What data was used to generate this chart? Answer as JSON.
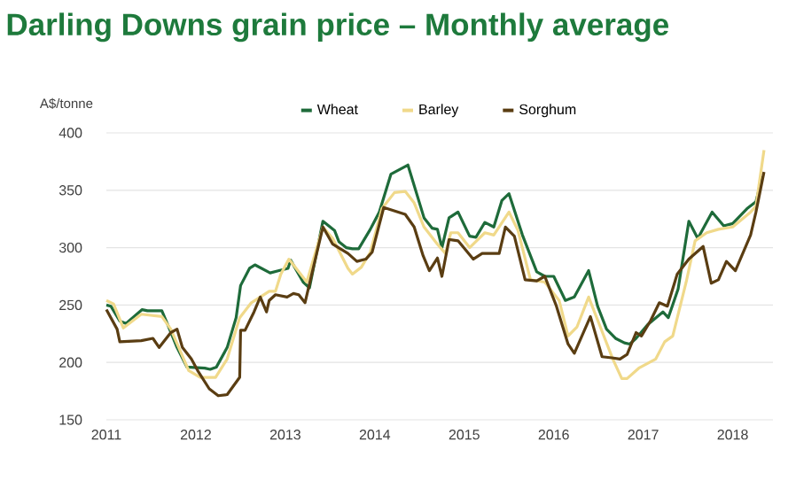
{
  "chart_data": {
    "type": "line",
    "title": "Darling Downs grain price – Monthly average",
    "ylabel": "A$/tonne",
    "xlim": [
      2011,
      2018.45
    ],
    "xticks": [
      2011,
      2012,
      2013,
      2014,
      2015,
      2016,
      2017,
      2018
    ],
    "ylim": [
      150,
      400
    ],
    "yticks": [
      150,
      200,
      250,
      300,
      350,
      400
    ],
    "grid": "y",
    "legend": "top",
    "marker": "none",
    "line_style": "solid",
    "series": [
      {
        "name": "Wheat",
        "color": "#1e6b3a",
        "x": [
          2011.0,
          2011.05,
          2011.15,
          2011.22,
          2011.4,
          2011.46,
          2011.62,
          2011.69,
          2011.79,
          2011.9,
          2012.1,
          2012.16,
          2012.23,
          2012.35,
          2012.45,
          2012.5,
          2012.6,
          2012.66,
          2012.83,
          2012.93,
          2013.03,
          2013.06,
          2013.2,
          2013.27,
          2013.42,
          2013.55,
          2013.6,
          2013.68,
          2013.75,
          2013.82,
          2013.95,
          2014.05,
          2014.18,
          2014.37,
          2014.55,
          2014.64,
          2014.7,
          2014.75,
          2014.83,
          2014.93,
          2015.06,
          2015.13,
          2015.23,
          2015.33,
          2015.42,
          2015.5,
          2015.65,
          2015.81,
          2015.9,
          2016.0,
          2016.13,
          2016.23,
          2016.39,
          2016.49,
          2016.59,
          2016.69,
          2016.79,
          2016.85,
          2016.92,
          2017.05,
          2017.22,
          2017.28,
          2017.39,
          2017.51,
          2017.61,
          2017.77,
          2017.9,
          2018.0,
          2018.16,
          2018.26,
          2018.33
        ],
        "values": [
          250,
          249,
          236,
          234,
          246,
          245,
          245,
          232,
          213,
          196,
          195,
          194,
          196,
          213,
          239,
          267,
          282,
          285,
          278,
          280,
          282,
          289,
          270,
          265,
          323,
          315,
          305,
          300,
          299,
          299,
          316,
          331,
          364,
          372,
          326,
          317,
          316,
          300,
          326,
          331,
          310,
          309,
          322,
          318,
          341,
          347,
          311,
          279,
          275,
          275,
          254,
          257,
          280,
          249,
          229,
          221,
          217,
          216,
          221,
          233,
          244,
          239,
          264,
          323,
          308,
          331,
          319,
          321,
          334,
          340,
          362
        ]
      },
      {
        "name": "Barley",
        "color": "#f0d98a",
        "x": [
          2011.0,
          2011.08,
          2011.19,
          2011.39,
          2011.62,
          2011.72,
          2011.82,
          2011.92,
          2012.05,
          2012.22,
          2012.35,
          2012.49,
          2012.62,
          2012.82,
          2012.89,
          2012.95,
          2013.04,
          2013.14,
          2013.24,
          2013.42,
          2013.53,
          2013.7,
          2013.75,
          2013.85,
          2013.95,
          2014.08,
          2014.22,
          2014.34,
          2014.44,
          2014.55,
          2014.7,
          2014.79,
          2014.85,
          2014.93,
          2015.06,
          2015.23,
          2015.33,
          2015.5,
          2015.6,
          2015.74,
          2015.9,
          2016.06,
          2016.16,
          2016.26,
          2016.39,
          2016.52,
          2016.66,
          2016.76,
          2016.82,
          2016.95,
          2017.14,
          2017.24,
          2017.33,
          2017.48,
          2017.58,
          2017.71,
          2017.84,
          2018.0,
          2018.2,
          2018.26,
          2018.35
        ],
        "values": [
          254,
          251,
          230,
          242,
          240,
          229,
          211,
          193,
          187,
          187,
          203,
          239,
          252,
          262,
          262,
          277,
          290,
          280,
          270,
          318,
          308,
          282,
          277,
          283,
          296,
          334,
          348,
          349,
          339,
          318,
          303,
          295,
          313,
          313,
          300,
          313,
          311,
          331,
          315,
          272,
          270,
          254,
          223,
          231,
          257,
          231,
          203,
          186,
          186,
          195,
          203,
          218,
          223,
          270,
          306,
          313,
          316,
          318,
          331,
          336,
          385
        ]
      },
      {
        "name": "Sorghum",
        "color": "#5a3d12",
        "x": [
          2011.0,
          2011.12,
          2011.15,
          2011.39,
          2011.52,
          2011.59,
          2011.72,
          2011.79,
          2011.85,
          2011.95,
          2012.02,
          2012.15,
          2012.25,
          2012.35,
          2012.49,
          2012.5,
          2012.55,
          2012.65,
          2012.72,
          2012.79,
          2012.82,
          2012.89,
          2013.02,
          2013.09,
          2013.15,
          2013.22,
          2013.42,
          2013.53,
          2013.7,
          2013.8,
          2013.9,
          2013.97,
          2014.1,
          2014.34,
          2014.44,
          2014.54,
          2014.61,
          2014.7,
          2014.75,
          2014.83,
          2014.93,
          2015.1,
          2015.2,
          2015.39,
          2015.46,
          2015.56,
          2015.68,
          2015.81,
          2015.9,
          2016.03,
          2016.16,
          2016.23,
          2016.41,
          2016.54,
          2016.65,
          2016.74,
          2016.82,
          2016.92,
          2016.98,
          2017.08,
          2017.18,
          2017.27,
          2017.38,
          2017.51,
          2017.67,
          2017.76,
          2017.84,
          2017.93,
          2018.03,
          2018.2,
          2018.26,
          2018.35
        ],
        "values": [
          246,
          229,
          218,
          219,
          221,
          213,
          226,
          229,
          213,
          203,
          193,
          177,
          171,
          172,
          187,
          228,
          228,
          244,
          257,
          244,
          254,
          259,
          257,
          260,
          259,
          252,
          318,
          303,
          295,
          288,
          290,
          296,
          335,
          329,
          318,
          293,
          280,
          291,
          275,
          307,
          306,
          290,
          295,
          295,
          318,
          310,
          272,
          271,
          275,
          249,
          216,
          208,
          240,
          205,
          204,
          203,
          207,
          226,
          223,
          236,
          252,
          249,
          277,
          290,
          301,
          269,
          272,
          288,
          280,
          311,
          331,
          366
        ]
      }
    ]
  }
}
